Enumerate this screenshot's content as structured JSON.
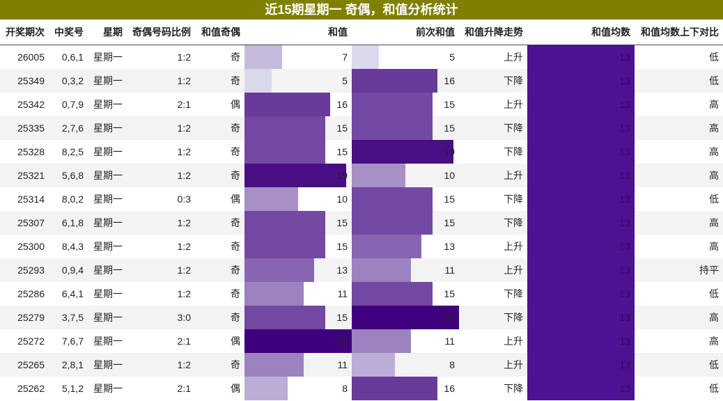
{
  "title": "近15期星期一 奇偶，和值分析统计",
  "headers": [
    "开奖期次",
    "中奖号",
    "星期",
    "奇偶号码比例",
    "和值奇偶",
    "和值",
    "前次和值",
    "和值升降走势",
    "和值均数",
    "和值均数上下对比"
  ],
  "scale_max": 20,
  "rows": [
    {
      "issue": "26005",
      "num": "0,6,1",
      "week": "星期一",
      "ratio": "1:2",
      "parity": "奇",
      "sum": 7,
      "prev": 5,
      "trend": "上升",
      "avg": 13,
      "cmp": "低"
    },
    {
      "issue": "25349",
      "num": "0,3,2",
      "week": "星期一",
      "ratio": "1:2",
      "parity": "奇",
      "sum": 5,
      "prev": 16,
      "trend": "下降",
      "avg": 13,
      "cmp": "低"
    },
    {
      "issue": "25342",
      "num": "0,7,9",
      "week": "星期一",
      "ratio": "2:1",
      "parity": "偶",
      "sum": 16,
      "prev": 15,
      "trend": "上升",
      "avg": 13,
      "cmp": "高"
    },
    {
      "issue": "25335",
      "num": "2,7,6",
      "week": "星期一",
      "ratio": "1:2",
      "parity": "奇",
      "sum": 15,
      "prev": 15,
      "trend": "下降",
      "avg": 13,
      "cmp": "高"
    },
    {
      "issue": "25328",
      "num": "8,2,5",
      "week": "星期一",
      "ratio": "1:2",
      "parity": "奇",
      "sum": 15,
      "prev": 19,
      "trend": "下降",
      "avg": 13,
      "cmp": "高"
    },
    {
      "issue": "25321",
      "num": "5,6,8",
      "week": "星期一",
      "ratio": "1:2",
      "parity": "奇",
      "sum": 19,
      "prev": 10,
      "trend": "上升",
      "avg": 13,
      "cmp": "高"
    },
    {
      "issue": "25314",
      "num": "8,0,2",
      "week": "星期一",
      "ratio": "0:3",
      "parity": "偶",
      "sum": 10,
      "prev": 15,
      "trend": "下降",
      "avg": 13,
      "cmp": "低"
    },
    {
      "issue": "25307",
      "num": "6,1,8",
      "week": "星期一",
      "ratio": "1:2",
      "parity": "奇",
      "sum": 15,
      "prev": 15,
      "trend": "下降",
      "avg": 13,
      "cmp": "高"
    },
    {
      "issue": "25300",
      "num": "8,4,3",
      "week": "星期一",
      "ratio": "1:2",
      "parity": "奇",
      "sum": 15,
      "prev": 13,
      "trend": "上升",
      "avg": 13,
      "cmp": "高"
    },
    {
      "issue": "25293",
      "num": "0,9,4",
      "week": "星期一",
      "ratio": "1:2",
      "parity": "奇",
      "sum": 13,
      "prev": 11,
      "trend": "上升",
      "avg": 13,
      "cmp": "持平"
    },
    {
      "issue": "25286",
      "num": "6,4,1",
      "week": "星期一",
      "ratio": "1:2",
      "parity": "奇",
      "sum": 11,
      "prev": 15,
      "trend": "下降",
      "avg": 13,
      "cmp": "低"
    },
    {
      "issue": "25279",
      "num": "3,7,5",
      "week": "星期一",
      "ratio": "3:0",
      "parity": "奇",
      "sum": 15,
      "prev": 20,
      "trend": "下降",
      "avg": 13,
      "cmp": "高"
    },
    {
      "issue": "25272",
      "num": "7,6,7",
      "week": "星期一",
      "ratio": "2:1",
      "parity": "偶",
      "sum": 20,
      "prev": 11,
      "trend": "上升",
      "avg": 13,
      "cmp": "高"
    },
    {
      "issue": "25265",
      "num": "2,8,1",
      "week": "星期一",
      "ratio": "1:2",
      "parity": "奇",
      "sum": 11,
      "prev": 8,
      "trend": "上升",
      "avg": 13,
      "cmp": "低"
    },
    {
      "issue": "25262",
      "num": "5,1,2",
      "week": "星期一",
      "ratio": "2:1",
      "parity": "偶",
      "sum": 8,
      "prev": 16,
      "trend": "下降",
      "avg": 13,
      "cmp": "低"
    }
  ]
}
